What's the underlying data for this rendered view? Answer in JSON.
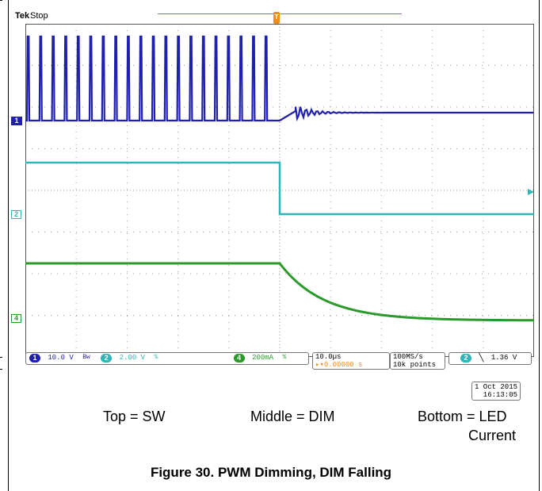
{
  "scope": {
    "brand": "Tek",
    "run_state": "Stop",
    "trigger_marker": "T",
    "channel_markers": [
      "1",
      "2",
      "4"
    ],
    "channels": [
      {
        "id": "1",
        "scale": "10.0 V",
        "bw": "Bᴡ",
        "color": "#1f1fb0"
      },
      {
        "id": "2",
        "scale": "2.00 V",
        "bw": "%",
        "color": "#2fb5b5"
      },
      {
        "id": "4",
        "scale": "200mA",
        "bw": "%",
        "color": "#2a9a2a"
      }
    ],
    "timebase": "10.0µs",
    "trigger_position": "▸▾0.00000 s",
    "sample_rate": "100MS/s",
    "record_length": "10k points",
    "trigger_channel": "2",
    "trigger_slope_icon": "falling-edge-icon",
    "trigger_level": "1.36 V",
    "date": "1 Oct  2015",
    "time": "16:13:05"
  },
  "captions": {
    "top": "Top = SW",
    "middle": "Middle = DIM",
    "bottom_line1": "Bottom = LED",
    "bottom_line2": "Current"
  },
  "figure_title": "Figure 30. PWM Dimming, DIM Falling",
  "colors": {
    "sw_trace": "#1f1fb0",
    "dim_trace": "#2fb5b5",
    "led_trace": "#2a9a2a",
    "grid": "#9a9a9a"
  }
}
